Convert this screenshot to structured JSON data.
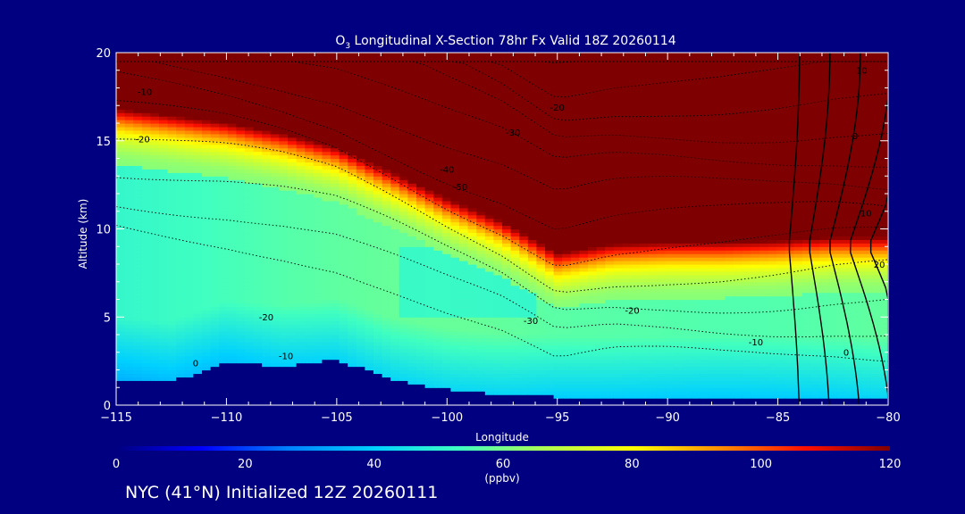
{
  "title": {
    "prefix": "O",
    "subscript": "3",
    "rest": " Longitudinal X-Section 78hr  Fx Valid 18Z 20260114"
  },
  "footer": "NYC (41°N) Initialized 12Z 20260111",
  "chart_data": {
    "type": "heatmap",
    "xlabel": "Longitude",
    "ylabel": "Altitude (km)",
    "xlim": [
      -115,
      -80
    ],
    "ylim": [
      0,
      20
    ],
    "xticks": [
      -115,
      -110,
      -105,
      -100,
      -95,
      -90,
      -85,
      -80
    ],
    "xtick_labels": [
      "−115",
      "−110",
      "−105",
      "−100",
      "−95",
      "−90",
      "−85",
      "−80"
    ],
    "yticks": [
      0,
      5,
      10,
      15,
      20
    ],
    "yminor": [
      1,
      2,
      3,
      4,
      6,
      7,
      8,
      9,
      11,
      12,
      13,
      14,
      16,
      17,
      18,
      19
    ],
    "colorbar": {
      "min": 0,
      "max": 120,
      "ticks": [
        0,
        20,
        40,
        60,
        80,
        100,
        120
      ],
      "unit": "(ppbv)",
      "stops": [
        "#00007f",
        "#0000ff",
        "#0080ff",
        "#00d0ff",
        "#40ffc0",
        "#b0ff50",
        "#ffff00",
        "#ff9000",
        "#ff1000",
        "#7f0000"
      ]
    },
    "field": {
      "lon": [
        -115,
        -112.5,
        -110,
        -107.5,
        -105,
        -102.5,
        -100,
        -97.5,
        -95,
        -92.5,
        -90,
        -87.5,
        -85,
        -82.5,
        -80
      ],
      "alt": [
        0,
        1,
        2,
        3,
        4,
        5,
        6,
        7,
        8,
        9,
        10,
        11,
        12,
        13,
        14,
        15,
        16,
        17,
        18,
        19,
        20
      ],
      "terrain_km": [
        1.5,
        1.3,
        2.5,
        2.2,
        2.6,
        1.5,
        0.9,
        0.6,
        0.5,
        0.45,
        0.45,
        0.45,
        0.4,
        0.4,
        0.4
      ],
      "tropopause_km": [
        16.3,
        15.9,
        15.5,
        14.9,
        14.1,
        12.7,
        11.2,
        9.9,
        8.1,
        8.6,
        8.7,
        8.7,
        8.8,
        9.0,
        9.0
      ]
    },
    "contour_labels": [
      {
        "text": "-10",
        "lon": -113.7,
        "alt": 17.6
      },
      {
        "text": "-20",
        "lon": -113.8,
        "alt": 14.9
      },
      {
        "text": "-20",
        "lon": -95.0,
        "alt": 16.7
      },
      {
        "text": "-30",
        "lon": -97.0,
        "alt": 15.3
      },
      {
        "text": "-40",
        "lon": -100.0,
        "alt": 13.2
      },
      {
        "text": "-50",
        "lon": -99.4,
        "alt": 12.2
      },
      {
        "text": "-20",
        "lon": -108.2,
        "alt": 4.8
      },
      {
        "text": "-10",
        "lon": -107.3,
        "alt": 2.6
      },
      {
        "text": "0",
        "lon": -111.4,
        "alt": 2.2
      },
      {
        "text": "-30",
        "lon": -96.2,
        "alt": 4.6
      },
      {
        "text": "-20",
        "lon": -91.6,
        "alt": 5.2
      },
      {
        "text": "-10",
        "lon": -86.0,
        "alt": 3.4
      },
      {
        "text": "0",
        "lon": -81.5,
        "alt": 15.1
      },
      {
        "text": "10",
        "lon": -81.0,
        "alt": 10.7
      },
      {
        "text": "10",
        "lon": -81.2,
        "alt": 18.8
      },
      {
        "text": "20",
        "lon": -80.4,
        "alt": 7.8
      },
      {
        "text": "0",
        "lon": -81.9,
        "alt": 2.8
      }
    ]
  }
}
